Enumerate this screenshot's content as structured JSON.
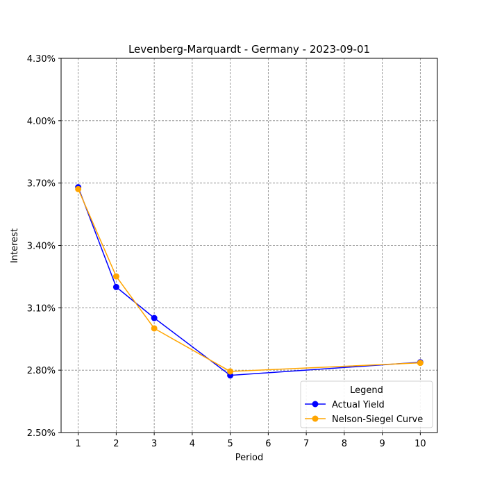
{
  "chart_data": {
    "type": "line",
    "title": "Levenberg-Marquardt - Germany - 2023-09-01",
    "xlabel": "Period",
    "ylabel": "Interest",
    "xlim": [
      0.55,
      10.45
    ],
    "ylim": [
      0.025,
      0.043
    ],
    "xticks": [
      1,
      2,
      3,
      4,
      5,
      6,
      7,
      8,
      9,
      10
    ],
    "yticks": [
      0.025,
      0.028,
      0.031,
      0.034,
      0.037,
      0.04,
      0.043
    ],
    "ytick_labels": [
      "2.50%",
      "2.80%",
      "3.10%",
      "3.40%",
      "3.70%",
      "4.00%",
      "4.30%"
    ],
    "grid": true,
    "legend": {
      "title": "Legend",
      "position": "lower-right"
    },
    "series": [
      {
        "name": "Actual Yield",
        "color": "#0000ff",
        "x": [
          1,
          2,
          3,
          5,
          10
        ],
        "y": [
          0.0368,
          0.032,
          0.03051,
          0.02775,
          0.02838
        ]
      },
      {
        "name": "Nelson-Siegel Curve",
        "color": "#ffa500",
        "x": [
          1,
          2,
          3,
          5,
          10
        ],
        "y": [
          0.03671,
          0.03251,
          0.03001,
          0.02794,
          0.02835
        ]
      }
    ]
  }
}
